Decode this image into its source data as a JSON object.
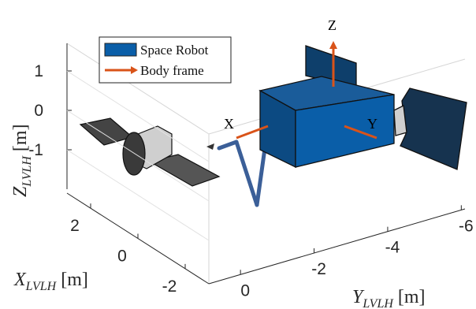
{
  "chart_data": {
    "type": "scene3d",
    "legend": [
      "Space Robot",
      "Body frame"
    ],
    "legend_colors": [
      "#0a5ea8",
      "#d95319"
    ],
    "annotations": [
      "X",
      "Y",
      "Z"
    ],
    "xlabel": {
      "main": "X",
      "sub": "LVLH",
      "unit": "[m]"
    },
    "ylabel": {
      "main": "Y",
      "sub": "LVLH",
      "unit": "[m]"
    },
    "zlabel": {
      "main": "Z",
      "sub": "LVLH",
      "unit": "[m]"
    },
    "xlim": [
      3,
      -3
    ],
    "xticks": [
      2,
      0,
      -2
    ],
    "ylim": [
      0.86,
      -6.1
    ],
    "yticks": [
      0,
      -2,
      -4,
      -6
    ],
    "zlim": [
      -2,
      1.7
    ],
    "zticks": [
      1,
      0,
      -1
    ],
    "grid": true
  }
}
